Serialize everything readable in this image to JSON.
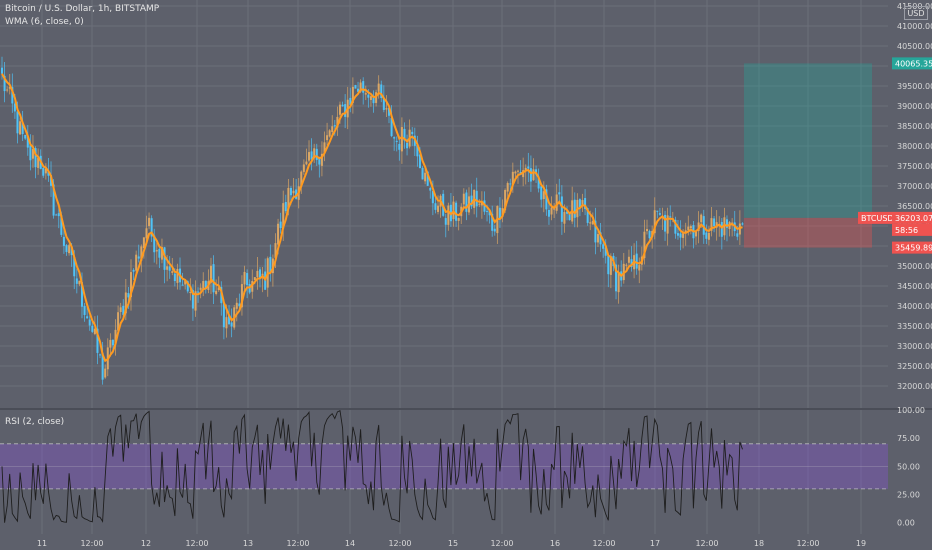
{
  "legend": {
    "symbol": "Bitcoin / U.S. Dollar, 1h, BITSTAMP",
    "indicator": "WMA (6, close, 0)"
  },
  "rsi_label": "RSI (2, close)",
  "currency_button": "USD",
  "colors": {
    "background": "#5d606b",
    "grid": "#6c6f7a",
    "candle_up": "#dba765",
    "candle_down": "#4fc3f7",
    "wma": "#ff9a1f",
    "rsi_band": "#7e57c2",
    "target_zone": "#26a69a",
    "stop_zone": "#ef5350"
  },
  "price_tags": {
    "target": "40065.35",
    "symbol": "BTCUSD",
    "current": "36203.07",
    "countdown": "58:56",
    "stop": "35459.89"
  },
  "chart_data": [
    {
      "type": "candlestick",
      "title": "Bitcoin / U.S. Dollar, 1h, BITSTAMP",
      "ylim": [
        31500,
        41500
      ],
      "y_ticks": [
        "32000.00",
        "32500.00",
        "33000.00",
        "33500.00",
        "34000.00",
        "34500.00",
        "35000.00",
        "35500.00",
        "36000.00",
        "36500.00",
        "37000.00",
        "37500.00",
        "38000.00",
        "38500.00",
        "39000.00",
        "39500.00",
        "40000.00",
        "40500.00",
        "41000.00",
        "41500.00"
      ],
      "x_ticks": [
        "11",
        "12:00",
        "12",
        "12:00",
        "13",
        "12:00",
        "14",
        "12:00",
        "15",
        "12:00",
        "16",
        "12:00",
        "17",
        "12:00",
        "18",
        "12:00",
        "19"
      ],
      "close_anchors": {
        "x": [
          0,
          6,
          14,
          22,
          30,
          40,
          48,
          56,
          70,
          80,
          92,
          104,
          116,
          126,
          134,
          146,
          158,
          170,
          182,
          196,
          208,
          218,
          228,
          236,
          248,
          262,
          272,
          280,
          290,
          300,
          312,
          322,
          330,
          340,
          350,
          362,
          370,
          380,
          390,
          400,
          410
        ],
        "y": [
          39700,
          38900,
          37800,
          37600,
          36300,
          34800,
          33700,
          32300,
          34500,
          36000,
          35100,
          34200,
          34700,
          33400,
          34500,
          34700,
          36700,
          37500,
          38300,
          39500,
          39300,
          38100,
          38400,
          36800,
          36200,
          36700,
          36000,
          37100,
          37500,
          36600,
          36400,
          36300,
          35600,
          34700,
          35000,
          36200,
          36000,
          36000,
          36000,
          36000,
          36000
        ]
      },
      "wma": {
        "name": "WMA (6, close, 0)",
        "period": 6
      },
      "position": {
        "entry": 36203.07,
        "target": 40065.35,
        "stop": 35459.89
      },
      "grid": true
    },
    {
      "type": "line",
      "title": "RSI (2, close)",
      "ylim": [
        -10,
        100
      ],
      "y_ticks": [
        "0.00",
        "25.00",
        "50.00",
        "75.00",
        "100.00"
      ],
      "band": [
        30,
        70
      ],
      "levels": [
        30,
        50,
        70
      ],
      "grid": true
    }
  ]
}
